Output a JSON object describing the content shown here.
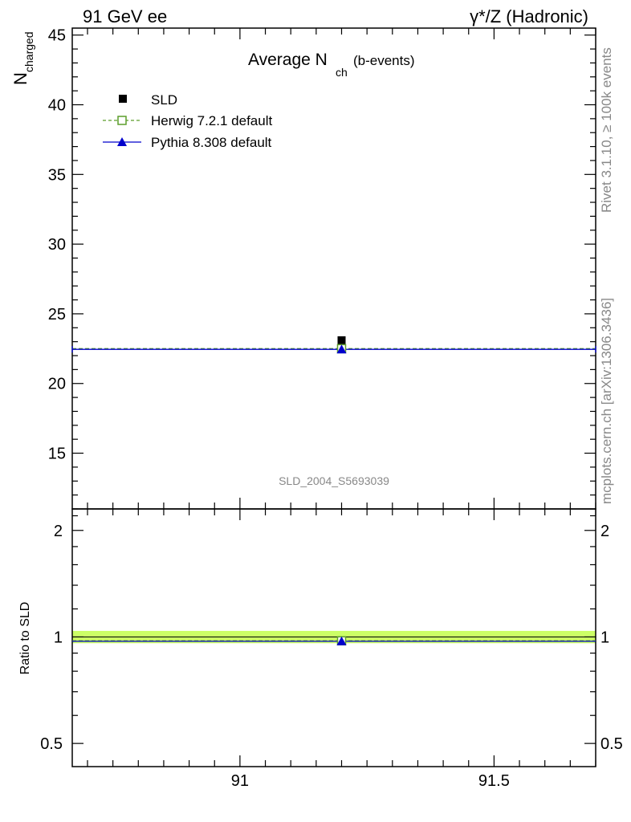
{
  "header": {
    "left": "91 GeV ee",
    "right": "γ*/Z (Hadronic)"
  },
  "side_labels": {
    "rivet": "Rivet 3.1.10, ≥ 100k events",
    "mcplots": "mcplots.cern.ch [arXiv:1306.3436]"
  },
  "chart_data": [
    {
      "type": "scatter",
      "title": "Average N",
      "title_sub": "ch",
      "title_suffix": "(b-events)",
      "ylabel": "N",
      "ylabel_sub": "charged",
      "xlim": [
        90.67,
        91.7
      ],
      "ylim": [
        11,
        45.5
      ],
      "y_ticks": [
        15,
        20,
        25,
        30,
        35,
        40,
        45
      ],
      "watermark": "SLD_2004_S5693039",
      "legend_position": "top-left",
      "series": [
        {
          "name": "SLD",
          "x": [
            91.2
          ],
          "y": [
            23.1
          ],
          "color": "#000000",
          "marker": "filled-square",
          "line": "none"
        },
        {
          "name": "Herwig 7.2.1 default",
          "x": [
            91.2
          ],
          "y": [
            22.5
          ],
          "x_range": [
            90.67,
            91.7
          ],
          "color": "#5c9e2a",
          "marker": "open-square",
          "line": "dashed"
        },
        {
          "name": "Pythia 8.308 default",
          "x": [
            91.2
          ],
          "y": [
            22.45
          ],
          "x_range": [
            90.67,
            91.7
          ],
          "color": "#0000cc",
          "marker": "filled-triangle",
          "line": "solid"
        }
      ]
    },
    {
      "type": "scatter",
      "ylabel": "Ratio to SLD",
      "xlim": [
        90.67,
        91.7
      ],
      "ylim": [
        0.43,
        2.3
      ],
      "y_scale": "log",
      "y_ticks": [
        0.5,
        1,
        2
      ],
      "y_tick_labels": [
        "0.5",
        "1",
        "2"
      ],
      "x_ticks": [
        91,
        91.5
      ],
      "x_tick_labels": [
        "91",
        "91.5"
      ],
      "band": {
        "lo": 0.96,
        "hi": 1.04,
        "color": "#ccff66"
      },
      "series": [
        {
          "name": "SLD",
          "x": [
            91.2
          ],
          "y": [
            1.0
          ],
          "color": "#000000"
        },
        {
          "name": "Herwig 7.2.1 default",
          "x": [
            91.2
          ],
          "y": [
            0.975
          ],
          "x_range": [
            90.67,
            91.7
          ],
          "color": "#5c9e2a"
        },
        {
          "name": "Pythia 8.308 default",
          "x": [
            91.2
          ],
          "y": [
            0.972
          ],
          "x_range": [
            90.67,
            91.7
          ],
          "color": "#0000cc"
        }
      ]
    }
  ]
}
